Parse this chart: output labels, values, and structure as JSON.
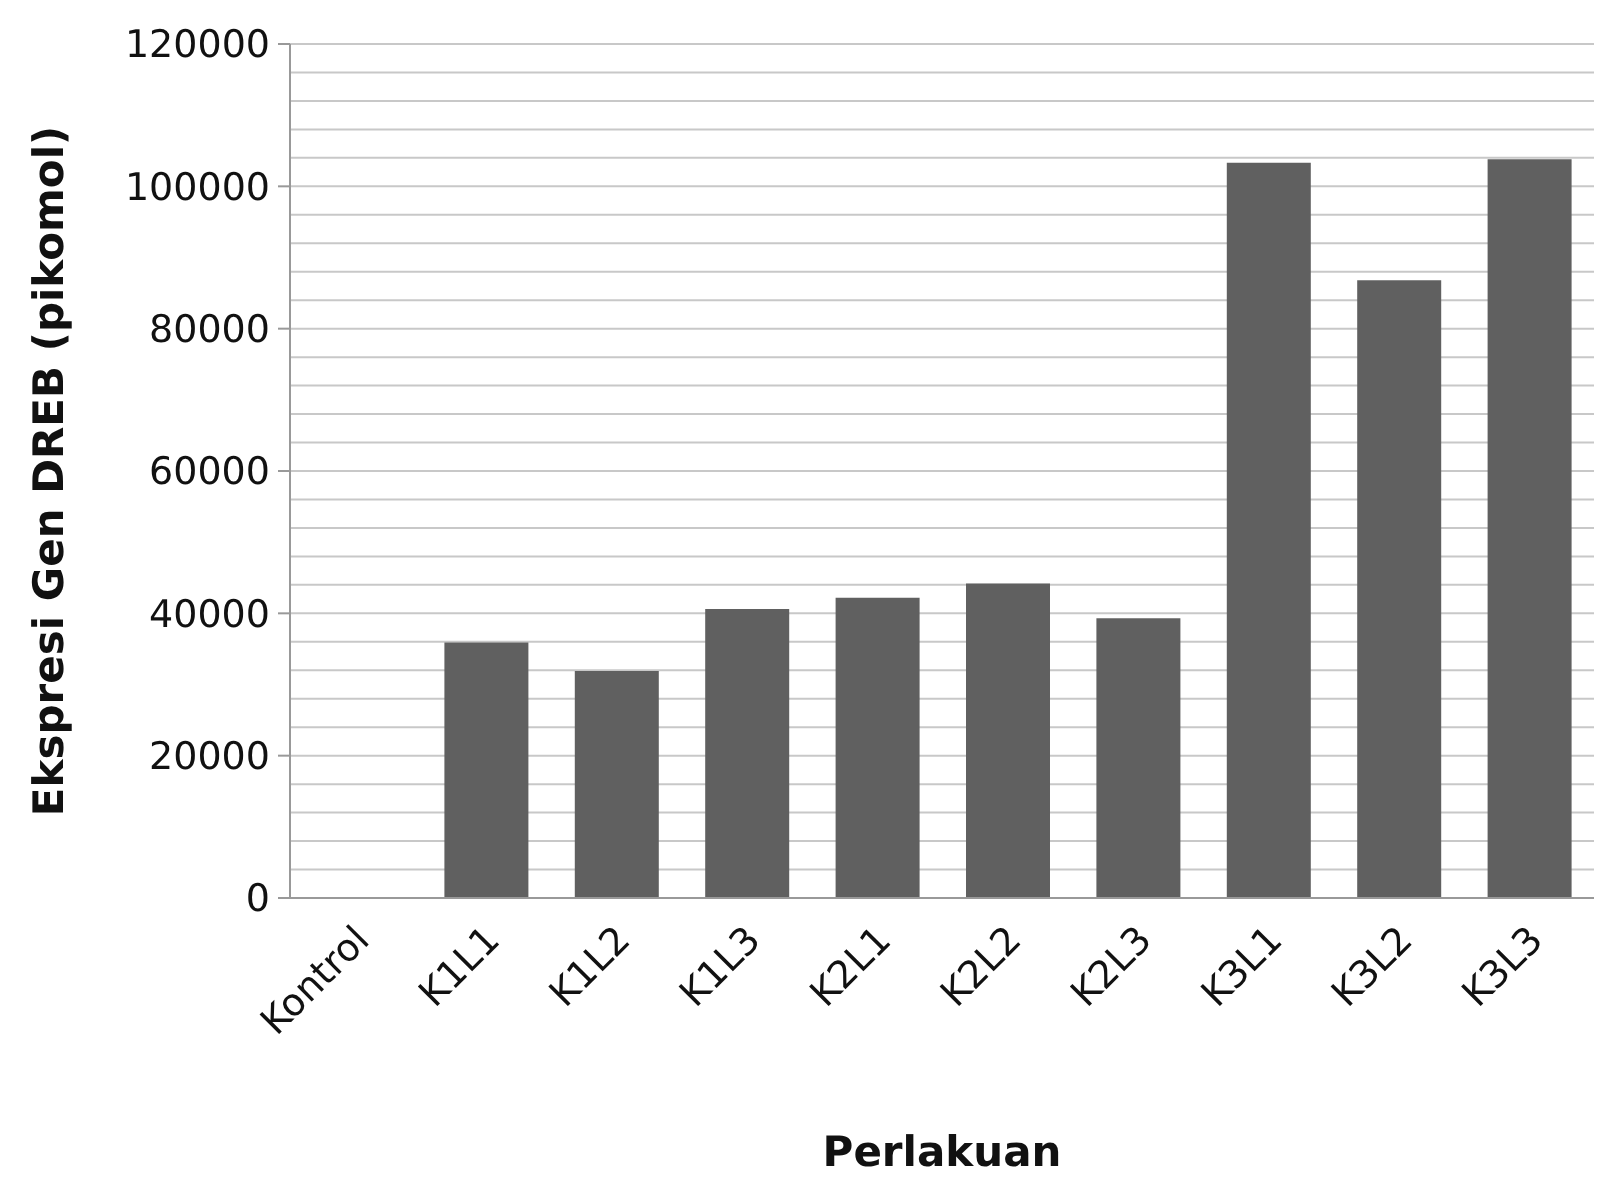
{
  "chart_data": {
    "type": "bar",
    "xlabel": "Perlakuan",
    "ylabel": "Ekspresi Gen DREB (pikomol)",
    "categories": [
      "Kontrol",
      "K1L1",
      "K1L2",
      "K1L3",
      "K2L1",
      "K2L2",
      "K2L3",
      "K3L1",
      "K3L2",
      "K3L3"
    ],
    "values": [
      0,
      35900,
      31900,
      40600,
      42200,
      44200,
      39300,
      103300,
      86800,
      103800
    ],
    "color": "#606060",
    "ylim": [
      0,
      120000
    ],
    "yticks": [
      0,
      {
        "value": 4000,
        "label": null
      },
      {
        "value": 8000,
        "label": null
      },
      {
        "value": 12000,
        "label": null
      },
      {
        "value": 16000,
        "label": null
      },
      20000,
      {
        "value": 24000,
        "label": null
      },
      {
        "value": 28000,
        "label": null
      },
      {
        "value": 32000,
        "label": null
      },
      {
        "value": 36000,
        "label": null
      },
      40000,
      {
        "value": 44000,
        "label": null
      },
      {
        "value": 48000,
        "label": null
      },
      {
        "value": 52000,
        "label": null
      },
      {
        "value": 56000,
        "label": null
      },
      60000,
      {
        "value": 64000,
        "label": null
      },
      {
        "value": 68000,
        "label": null
      },
      {
        "value": 72000,
        "label": null
      },
      {
        "value": 76000,
        "label": null
      },
      80000,
      {
        "value": 84000,
        "label": null
      },
      {
        "value": 88000,
        "label": null
      },
      {
        "value": 92000,
        "label": null
      },
      {
        "value": 96000,
        "label": null
      },
      100000,
      {
        "value": 104000,
        "label": null
      },
      {
        "value": 108000,
        "label": null
      },
      {
        "value": 112000,
        "label": null
      },
      {
        "value": 116000,
        "label": null
      },
      120000
    ],
    "grid": "y"
  }
}
